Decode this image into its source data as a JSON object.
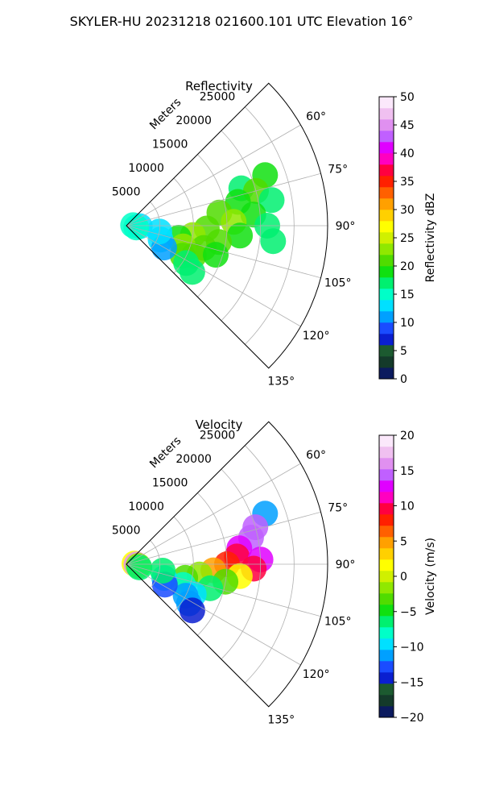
{
  "figure": {
    "title": "SKYLER-HU  20231218  021600.101 UTC Elevation 16°"
  },
  "chart_data": [
    {
      "type": "heatmap",
      "subtype": "polar-sector-ppi",
      "title": "Reflectivity",
      "range_label": "Meters",
      "range_ticks": [
        5000,
        10000,
        15000,
        20000,
        25000
      ],
      "range_tick_labels": [
        "5000",
        "10000",
        "15000",
        "20000",
        "25000"
      ],
      "range_max": 30000,
      "azimuth_range": [
        45,
        135
      ],
      "azimuth_ticks": [
        60,
        75,
        90,
        105,
        120,
        135
      ],
      "azimuth_tick_labels": [
        "60°",
        "75°",
        "90°",
        "105°",
        "120°",
        "135°"
      ],
      "grid": true,
      "colorbar": {
        "label": "Reflectivity dBZ",
        "min": 0,
        "max": 50,
        "ticks": [
          0,
          5,
          10,
          15,
          20,
          25,
          30,
          35,
          40,
          45,
          50
        ],
        "tick_labels": [
          "0",
          "5",
          "10",
          "15",
          "20",
          "25",
          "30",
          "35",
          "40",
          "45",
          "50"
        ],
        "colors": [
          "#0b1a5e",
          "#143a2a",
          "#1c5a30",
          "#0a1fd0",
          "#1a4cff",
          "#00a0ff",
          "#00e0ff",
          "#00ffc8",
          "#00f070",
          "#10e010",
          "#50dc00",
          "#90e800",
          "#d0f000",
          "#ffff00",
          "#ffd000",
          "#ffa000",
          "#ff6000",
          "#ff2000",
          "#ff0040",
          "#ff00c0",
          "#e000ff",
          "#c060ff",
          "#e090f0",
          "#f0c0f0",
          "#fbe8fb"
        ]
      },
      "echo_cells": [
        {
          "az": 70,
          "r": 22000,
          "value": 18
        },
        {
          "az": 72,
          "r": 18000,
          "value": 17
        },
        {
          "az": 75,
          "r": 20000,
          "value": 20
        },
        {
          "az": 78,
          "r": 17000,
          "value": 19
        },
        {
          "az": 80,
          "r": 22000,
          "value": 16
        },
        {
          "az": 82,
          "r": 14000,
          "value": 20
        },
        {
          "az": 85,
          "r": 19000,
          "value": 18
        },
        {
          "az": 88,
          "r": 16000,
          "value": 22
        },
        {
          "az": 90,
          "r": 21000,
          "value": 17
        },
        {
          "az": 92,
          "r": 12000,
          "value": 21
        },
        {
          "az": 95,
          "r": 17000,
          "value": 19
        },
        {
          "az": 98,
          "r": 10000,
          "value": 22
        },
        {
          "az": 100,
          "r": 14000,
          "value": 20
        },
        {
          "az": 103,
          "r": 8000,
          "value": 18
        },
        {
          "az": 106,
          "r": 12000,
          "value": 21
        },
        {
          "az": 110,
          "r": 9000,
          "value": 22
        },
        {
          "az": 114,
          "r": 11000,
          "value": 20
        },
        {
          "az": 118,
          "r": 9500,
          "value": 21
        },
        {
          "az": 122,
          "r": 10500,
          "value": 17
        },
        {
          "az": 125,
          "r": 12000,
          "value": 16
        },
        {
          "az": 112,
          "r": 5500,
          "value": 13
        },
        {
          "az": 120,
          "r": 6500,
          "value": 11
        },
        {
          "az": 100,
          "r": 5000,
          "value": 12
        },
        {
          "az": 108,
          "r": 14000,
          "value": 18
        },
        {
          "az": 96,
          "r": 22000,
          "value": 16
        },
        {
          "az": 86,
          "r": 1000,
          "value": 14
        },
        {
          "az": 92,
          "r": 2000,
          "value": 13
        },
        {
          "az": 100,
          "r": 1500,
          "value": 15
        }
      ]
    },
    {
      "type": "heatmap",
      "subtype": "polar-sector-ppi",
      "title": "Velocity",
      "range_label": "Meters",
      "range_ticks": [
        5000,
        10000,
        15000,
        20000,
        25000
      ],
      "range_tick_labels": [
        "5000",
        "10000",
        "15000",
        "20000",
        "25000"
      ],
      "range_max": 30000,
      "azimuth_range": [
        45,
        135
      ],
      "azimuth_ticks": [
        60,
        75,
        90,
        105,
        120,
        135
      ],
      "azimuth_tick_labels": [
        "60°",
        "75°",
        "90°",
        "105°",
        "120°",
        "135°"
      ],
      "grid": true,
      "colorbar": {
        "label": "Velocity (m/s)",
        "min": -20,
        "max": 20,
        "ticks": [
          -20,
          -15,
          -10,
          -5,
          0,
          5,
          10,
          15,
          20
        ],
        "tick_labels": [
          "−20",
          "−15",
          "−10",
          "−5",
          "0",
          "5",
          "10",
          "15",
          "20"
        ],
        "colors": [
          "#0b1a5e",
          "#143a2a",
          "#1c5a30",
          "#0a1fd0",
          "#1a4cff",
          "#00a0ff",
          "#00e0ff",
          "#00ffc8",
          "#00f070",
          "#10e010",
          "#50dc00",
          "#90e800",
          "#d0f000",
          "#ffff00",
          "#ffd000",
          "#ffa000",
          "#ff6000",
          "#ff2000",
          "#ff0040",
          "#ff00c0",
          "#e000ff",
          "#c060ff",
          "#e090f0",
          "#f0c0f0",
          "#fbe8fb"
        ]
      },
      "echo_cells": [
        {
          "az": 70,
          "r": 22000,
          "value": -12
        },
        {
          "az": 74,
          "r": 20000,
          "value": 15
        },
        {
          "az": 78,
          "r": 19000,
          "value": 14
        },
        {
          "az": 82,
          "r": 17000,
          "value": 12
        },
        {
          "az": 86,
          "r": 16500,
          "value": 10
        },
        {
          "az": 88,
          "r": 20000,
          "value": 13
        },
        {
          "az": 90,
          "r": 15000,
          "value": 8
        },
        {
          "az": 92,
          "r": 19000,
          "value": 9
        },
        {
          "az": 94,
          "r": 13000,
          "value": 4
        },
        {
          "az": 96,
          "r": 17000,
          "value": 2
        },
        {
          "az": 98,
          "r": 11000,
          "value": -1
        },
        {
          "az": 100,
          "r": 15000,
          "value": -3
        },
        {
          "az": 103,
          "r": 9000,
          "value": -4
        },
        {
          "az": 106,
          "r": 13000,
          "value": -6
        },
        {
          "az": 110,
          "r": 9000,
          "value": -8
        },
        {
          "az": 114,
          "r": 11000,
          "value": -9
        },
        {
          "az": 118,
          "r": 10000,
          "value": -11
        },
        {
          "az": 122,
          "r": 11000,
          "value": -12
        },
        {
          "az": 125,
          "r": 12000,
          "value": -14
        },
        {
          "az": 110,
          "r": 6000,
          "value": -10
        },
        {
          "az": 118,
          "r": 6500,
          "value": -13
        },
        {
          "az": 100,
          "r": 5500,
          "value": -7
        },
        {
          "az": 86,
          "r": 1200,
          "value": 1
        },
        {
          "az": 92,
          "r": 1500,
          "value": 16
        },
        {
          "az": 98,
          "r": 1800,
          "value": -2
        },
        {
          "az": 104,
          "r": 2000,
          "value": -6
        }
      ]
    }
  ]
}
